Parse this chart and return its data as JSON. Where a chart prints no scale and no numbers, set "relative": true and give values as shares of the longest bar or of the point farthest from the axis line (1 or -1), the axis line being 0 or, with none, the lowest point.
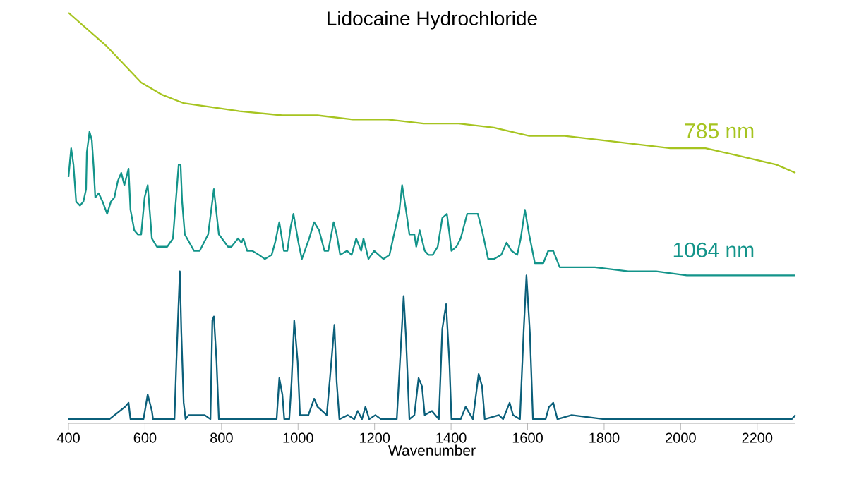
{
  "chart_data": {
    "type": "line",
    "title": "Lidocaine Hydrochloride",
    "xlabel": "Wavenumber",
    "relative": true,
    "xlim": [
      400,
      2300
    ],
    "xticks": [
      400,
      600,
      800,
      1000,
      1200,
      1400,
      1600,
      1800,
      2000,
      2200
    ],
    "series": [
      {
        "name": "785 nm",
        "color": "#a6c420",
        "x": [
          400,
          498,
          590,
          645,
          700,
          774,
          847,
          959,
          1051,
          1143,
          1235,
          1328,
          1420,
          1512,
          1604,
          1697,
          1789,
          1881,
          1973,
          2065,
          2158,
          2250,
          2300
        ],
        "values": [
          1.0,
          0.92,
          0.83,
          0.8,
          0.78,
          0.77,
          0.76,
          0.75,
          0.75,
          0.74,
          0.74,
          0.73,
          0.73,
          0.72,
          0.7,
          0.7,
          0.69,
          0.68,
          0.67,
          0.67,
          0.65,
          0.63,
          0.61
        ]
      },
      {
        "name": "1064 nm",
        "color": "#13948a",
        "x": [
          400,
          407,
          413,
          420,
          430,
          439,
          446,
          448,
          455,
          461,
          466,
          470,
          479,
          489,
          501,
          511,
          520,
          529,
          538,
          546,
          557,
          562,
          572,
          581,
          590,
          599,
          607,
          618,
          631,
          658,
          673,
          688,
          693,
          697,
          704,
          728,
          743,
          765,
          780,
          787,
          793,
          817,
          826,
          843,
          852,
          857,
          867,
          880,
          898,
          913,
          931,
          940,
          951,
          963,
          972,
          981,
          988,
          1001,
          1010,
          1029,
          1042,
          1055,
          1069,
          1079,
          1093,
          1101,
          1110,
          1128,
          1140,
          1152,
          1165,
          1171,
          1184,
          1199,
          1223,
          1239,
          1258,
          1265,
          1272,
          1282,
          1291,
          1304,
          1309,
          1318,
          1331,
          1341,
          1352,
          1365,
          1377,
          1389,
          1396,
          1401,
          1414,
          1425,
          1442,
          1462,
          1470,
          1481,
          1497,
          1512,
          1531,
          1545,
          1558,
          1573,
          1582,
          1593,
          1604,
          1619,
          1641,
          1654,
          1667,
          1684,
          1697,
          1733,
          1776,
          1863,
          1936,
          2016,
          2108,
          2195,
          2300
        ],
        "values": [
          0.6,
          0.67,
          0.63,
          0.54,
          0.53,
          0.54,
          0.57,
          0.66,
          0.71,
          0.69,
          0.62,
          0.55,
          0.56,
          0.54,
          0.51,
          0.54,
          0.55,
          0.59,
          0.61,
          0.58,
          0.62,
          0.52,
          0.47,
          0.46,
          0.46,
          0.55,
          0.58,
          0.45,
          0.43,
          0.43,
          0.45,
          0.63,
          0.63,
          0.54,
          0.46,
          0.42,
          0.42,
          0.46,
          0.57,
          0.51,
          0.46,
          0.43,
          0.43,
          0.45,
          0.44,
          0.45,
          0.42,
          0.42,
          0.41,
          0.4,
          0.41,
          0.44,
          0.49,
          0.42,
          0.42,
          0.48,
          0.51,
          0.44,
          0.4,
          0.45,
          0.49,
          0.47,
          0.42,
          0.42,
          0.49,
          0.46,
          0.41,
          0.42,
          0.41,
          0.45,
          0.42,
          0.45,
          0.4,
          0.42,
          0.4,
          0.41,
          0.49,
          0.52,
          0.58,
          0.52,
          0.46,
          0.46,
          0.43,
          0.47,
          0.42,
          0.41,
          0.41,
          0.43,
          0.5,
          0.51,
          0.46,
          0.42,
          0.43,
          0.45,
          0.51,
          0.51,
          0.51,
          0.47,
          0.4,
          0.4,
          0.41,
          0.44,
          0.42,
          0.41,
          0.45,
          0.52,
          0.46,
          0.39,
          0.39,
          0.42,
          0.42,
          0.38,
          0.38,
          0.38,
          0.38,
          0.37,
          0.37,
          0.36,
          0.36,
          0.36,
          0.36
        ]
      },
      {
        "color": "#0b5f7a",
        "x": [
          400,
          507,
          548,
          557,
          562,
          596,
          607,
          618,
          621,
          677,
          682,
          691,
          695,
          701,
          706,
          714,
          756,
          771,
          776,
          780,
          787,
          793,
          944,
          951,
          959,
          964,
          977,
          983,
          990,
          999,
          1005,
          1027,
          1042,
          1051,
          1075,
          1088,
          1095,
          1101,
          1108,
          1130,
          1147,
          1156,
          1167,
          1176,
          1186,
          1202,
          1217,
          1258,
          1267,
          1276,
          1282,
          1291,
          1304,
          1315,
          1324,
          1331,
          1350,
          1368,
          1377,
          1387,
          1396,
          1401,
          1425,
          1438,
          1457,
          1472,
          1481,
          1488,
          1525,
          1536,
          1553,
          1562,
          1580,
          1590,
          1597,
          1606,
          1614,
          1647,
          1656,
          1667,
          1678,
          1715,
          1800,
          1900,
          2290,
          2300
        ],
        "values": [
          0.01,
          0.01,
          0.04,
          0.05,
          0.01,
          0.01,
          0.07,
          0.03,
          0.01,
          0.01,
          0.15,
          0.37,
          0.22,
          0.05,
          0.01,
          0.02,
          0.02,
          0.01,
          0.25,
          0.26,
          0.15,
          0.01,
          0.01,
          0.11,
          0.07,
          0.01,
          0.01,
          0.1,
          0.25,
          0.15,
          0.02,
          0.02,
          0.06,
          0.04,
          0.02,
          0.16,
          0.24,
          0.1,
          0.01,
          0.02,
          0.01,
          0.03,
          0.01,
          0.04,
          0.01,
          0.02,
          0.01,
          0.01,
          0.16,
          0.31,
          0.21,
          0.01,
          0.02,
          0.11,
          0.09,
          0.02,
          0.03,
          0.01,
          0.23,
          0.29,
          0.14,
          0.01,
          0.01,
          0.04,
          0.01,
          0.12,
          0.09,
          0.01,
          0.02,
          0.01,
          0.05,
          0.02,
          0.01,
          0.23,
          0.36,
          0.22,
          0.01,
          0.01,
          0.04,
          0.05,
          0.01,
          0.02,
          0.01,
          0.01,
          0.01,
          0.02
        ]
      }
    ]
  }
}
